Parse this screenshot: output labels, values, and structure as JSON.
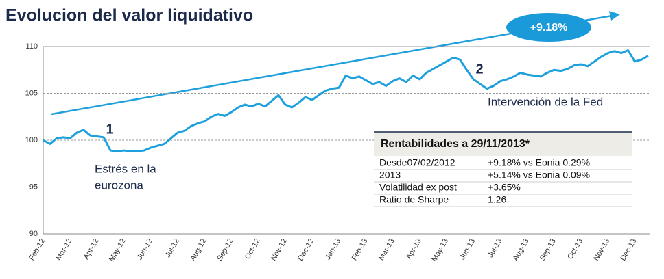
{
  "chart_data": {
    "type": "line",
    "title": "Evolucion del valor liquidativo",
    "categories": [
      "Feb-12",
      null,
      null,
      null,
      "Mar-12",
      null,
      null,
      null,
      "Apr-12",
      null,
      null,
      null,
      "May-12",
      null,
      null,
      null,
      "Jun-12",
      null,
      null,
      null,
      "Jul-12",
      null,
      null,
      null,
      "Aug-12",
      null,
      null,
      null,
      "Sep-12",
      null,
      null,
      null,
      "Oct-12",
      null,
      null,
      null,
      "Nov-12",
      null,
      null,
      null,
      "Dec-12",
      null,
      null,
      null,
      "Jan-13",
      null,
      null,
      null,
      "Feb-13",
      null,
      null,
      null,
      "Mar-13",
      null,
      null,
      null,
      "Apr-13",
      null,
      null,
      null,
      "May-13",
      null,
      null,
      null,
      "Jun-13",
      null,
      null,
      null,
      "Jul-13",
      null,
      null,
      null,
      "Aug-13",
      null,
      null,
      null,
      "Sep-13",
      null,
      null,
      null,
      "Oct-13",
      null,
      null,
      null,
      "Nov-13",
      null,
      null,
      null,
      "Dec-13",
      null,
      null
    ],
    "series": [
      {
        "color": "#1ea0dc",
        "values": [
          100,
          99.6,
          100.2,
          100.3,
          100.2,
          100.8,
          101.1,
          100.5,
          100.4,
          100.3,
          98.9,
          98.8,
          98.9,
          98.8,
          98.8,
          98.9,
          99.2,
          99.4,
          99.6,
          100.2,
          100.8,
          101.0,
          101.5,
          101.8,
          102.0,
          102.5,
          102.8,
          102.6,
          103.0,
          103.5,
          103.8,
          103.6,
          103.9,
          103.6,
          104.2,
          104.8,
          103.8,
          103.5,
          104.0,
          104.6,
          104.3,
          104.8,
          105.3,
          105.5,
          105.6,
          106.9,
          106.6,
          106.8,
          106.4,
          106.0,
          106.2,
          105.8,
          106.3,
          106.6,
          106.2,
          106.9,
          106.5,
          107.2,
          107.6,
          108.0,
          108.4,
          108.8,
          108.6,
          107.5,
          106.5,
          106.0,
          105.5,
          105.8,
          106.3,
          106.5,
          106.8,
          107.2,
          107.0,
          106.9,
          106.8,
          107.2,
          107.5,
          107.4,
          107.6,
          108.0,
          108.1,
          107.9,
          108.4,
          108.9,
          109.3,
          109.5,
          109.3,
          109.6,
          108.4,
          108.6,
          109.0
        ]
      }
    ],
    "ylim": [
      90,
      110
    ],
    "yticks": [
      90,
      95,
      100,
      105,
      110
    ],
    "grid": true,
    "annotations": {
      "trend": "+9.18%",
      "event1_number": "1",
      "event1_line1": "Estrés en la",
      "event1_line2": "eurozona",
      "event2_number": "2",
      "event2_text": "Intervención de la Fed"
    },
    "table": {
      "title": "Rentabilidades a 29/11/2013*",
      "rows": [
        [
          "Desde07/02/2012",
          "+9.18% vs Eonia 0.29%"
        ],
        [
          "2013",
          "+5.14% vs Eonia 0.09%"
        ],
        [
          "Volatilidad ex post",
          "+3.65%"
        ],
        [
          "Ratio de Sharpe",
          "1.26"
        ]
      ]
    }
  }
}
